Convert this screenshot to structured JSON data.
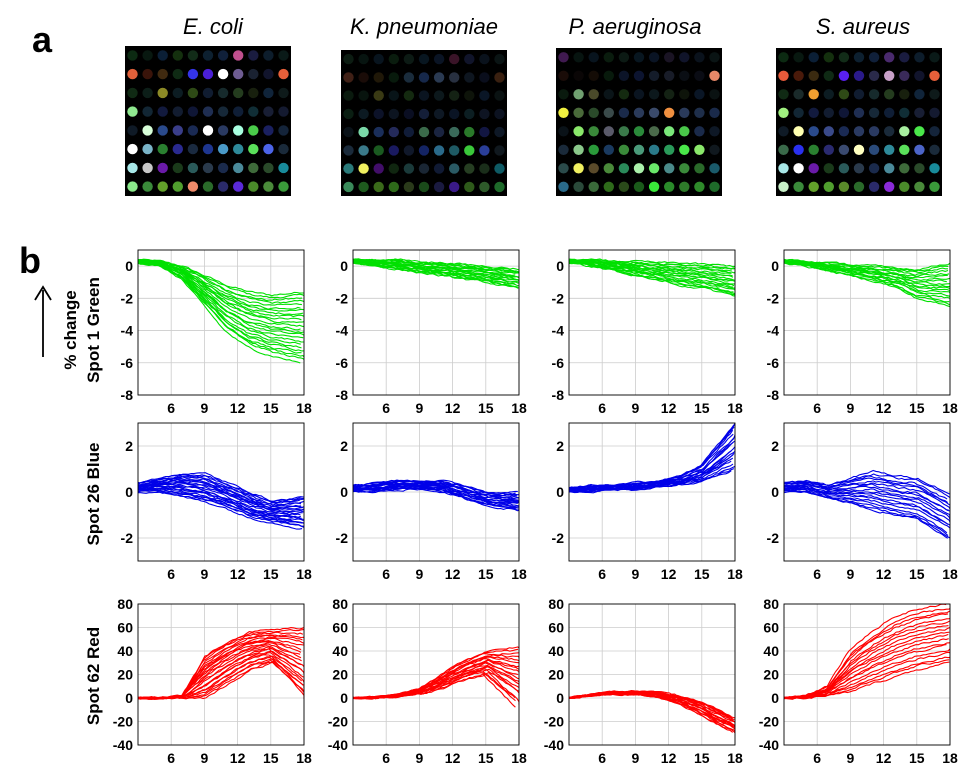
{
  "panel_labels": {
    "a": "a",
    "b": "b"
  },
  "row_labels": [
    "Spot 1 Green",
    "Spot 26 Blue",
    "Spot 62 Red"
  ],
  "y_annotation": "% change",
  "columns": [
    {
      "species": "E. coli",
      "array": [
        [
          "#0c2a12",
          "#081810",
          "#0b1f36",
          "#14300e",
          "#122c18",
          "#0d2030",
          "#10203a",
          "#c0508e",
          "#1a1c40",
          "#0d1d2c",
          "#0a1a18"
        ],
        [
          "#e0603a",
          "#3a140a",
          "#402a10",
          "#0f2a14",
          "#3434e8",
          "#4a1fd6",
          "#ffffff",
          "#6e5c92",
          "#1a2232",
          "#11142c",
          "#e8603a"
        ],
        [
          "#102a14",
          "#0c1e18",
          "#8c8a26",
          "#0c1c22",
          "#2e4a16",
          "#101c30",
          "#162a2c",
          "#243c1e",
          "#18200e",
          "#10243a",
          "#0e1a1a"
        ],
        [
          "#8fe88f",
          "#122634",
          "#121a3e",
          "#121c30",
          "#0f1636",
          "#1f2e52",
          "#162838",
          "#0f1e36",
          "#102e36",
          "#181e34",
          "#141a30"
        ],
        [
          "#0f1a26",
          "#d8ffd8",
          "#2a4a8c",
          "#3a3e8a",
          "#1a2a54",
          "#ffffff",
          "#2a3a62",
          "#a8ffe0",
          "#4acc4a",
          "#1a2060",
          "#14243a"
        ],
        [
          "#ffffff",
          "#7ab4c8",
          "#2a8030",
          "#2a2a90",
          "#1a2a40",
          "#1e3690",
          "#4a9ac8",
          "#2e8a9a",
          "#5ae05a",
          "#4c64e8",
          "#1a2a3a"
        ],
        [
          "#a8e8e8",
          "#c8c8c8",
          "#6a1aa8",
          "#1a3a1a",
          "#2a5a5a",
          "#2a3a4c",
          "#1a2a4c",
          "#4a8a9a",
          "#3e6a3a",
          "#2a4a2a",
          "#188a9a"
        ],
        [
          "#8ae88a",
          "#3a8a3a",
          "#62a02a",
          "#509e2e",
          "#f08a6a",
          "#2a6a2a",
          "#2a2a6a",
          "#5a2ad8",
          "#4a8a2a",
          "#4a8a3a",
          "#3a9a3a"
        ]
      ]
    },
    {
      "species": "K. pneumoniae",
      "array": [
        [
          "#0c1c12",
          "#071410",
          "#08141e",
          "#0a1c0e",
          "#0c1a14",
          "#081620",
          "#0a1424",
          "#3a1428",
          "#10142a",
          "#0a121c",
          "#0a1414"
        ],
        [
          "#402016",
          "#1a0c08",
          "#201808",
          "#081a0c",
          "#1a2c3c",
          "#16284a",
          "#2a3a52",
          "#283040",
          "#0e1620",
          "#0a0e1c",
          "#3a2010"
        ],
        [
          "#0a1a0e",
          "#08140e",
          "#3a3a14",
          "#081418",
          "#142a10",
          "#0a1420",
          "#0c181c",
          "#142214",
          "#0e140a",
          "#0a1626",
          "#0a1212"
        ],
        [
          "#0a1e12",
          "#0c1a22",
          "#0c1228",
          "#0c1420",
          "#0a0e22",
          "#141e38",
          "#0e1824",
          "#0a1424",
          "#0c1e22",
          "#0e1422",
          "#0c1220"
        ],
        [
          "#0a1218",
          "#7ad8a8",
          "#1a2e5a",
          "#242a5a",
          "#101c38",
          "#3a6a4a",
          "#1a2440",
          "#3a6a5a",
          "#2a7a2a",
          "#121642",
          "#0e1826"
        ],
        [
          "#1a2a3a",
          "#3a7a8a",
          "#1a5a20",
          "#1a1a60",
          "#10182a",
          "#142464",
          "#2a6a8a",
          "#1e5a64",
          "#3ac83a",
          "#2a3e98",
          "#10181e"
        ],
        [
          "#2a7a7a",
          "#f0f060",
          "#420e6a",
          "#102610",
          "#1a3a3a",
          "#1a2634",
          "#101a34",
          "#2a5a64",
          "#263e22",
          "#1a2e1a",
          "#0e5a64"
        ],
        [
          "#3a8a5a",
          "#1e5a1e",
          "#3a6a1a",
          "#2e6a1a",
          "#2a3a1a",
          "#1a4a1a",
          "#1a1a40",
          "#3a1a88",
          "#2e5a1a",
          "#2e5a2a",
          "#1e6a2a"
        ]
      ]
    },
    {
      "species": "P. aeruginosa",
      "array": [
        [
          "#401a50",
          "#071410",
          "#08141e",
          "#0a1c0e",
          "#0c1a14",
          "#081620",
          "#0a1424",
          "#1a1424",
          "#10142a",
          "#0a121c",
          "#0a1414"
        ],
        [
          "#1a0c08",
          "#0a0606",
          "#140c06",
          "#081a0c",
          "#0c1428",
          "#0c1430",
          "#141c2a",
          "#181c28",
          "#0a0e14",
          "#0a0c14",
          "#e88868"
        ],
        [
          "#0a1a0e",
          "#70a070",
          "#4a4a2a",
          "#0a1418",
          "#142a10",
          "#0a1420",
          "#0c181c",
          "#142214",
          "#0e140a",
          "#0a1626",
          "#0a1212"
        ],
        [
          "#f0f040",
          "#4a6a3a",
          "#2a4a2a",
          "#3a4a4a",
          "#1a2a4a",
          "#2a3a5a",
          "#3a4a6a",
          "#f09040",
          "#2a3a5a",
          "#1e2e4a",
          "#1a2a4a"
        ],
        [
          "#0a1218",
          "#8ae86a",
          "#3a8a3a",
          "#5a5a6a",
          "#3a7a4a",
          "#2a8a3a",
          "#4a6a4a",
          "#7ae87a",
          "#4ac84a",
          "#1a2a4a",
          "#0e1826"
        ],
        [
          "#1a2a3a",
          "#8ac88a",
          "#2a9a3a",
          "#1a3a60",
          "#3a8a3a",
          "#4a9a7a",
          "#2a7a8a",
          "#2a9a5a",
          "#4ae84a",
          "#8ae86a",
          "#10181e"
        ],
        [
          "#2a4a4a",
          "#f0f060",
          "#5a4a2a",
          "#4a8a3a",
          "#2a8a5a",
          "#aaf0aa",
          "#6ae86a",
          "#4a8a8a",
          "#3a8a3a",
          "#2a6a2a",
          "#1a5a6a"
        ],
        [
          "#2a6a8a",
          "#2a4a3a",
          "#3a6a3a",
          "#2e6a1a",
          "#2a4a1a",
          "#1a5a1a",
          "#3ae83a",
          "#2a8a2a",
          "#2e7a2a",
          "#2e8a2a",
          "#1e6a2a"
        ]
      ]
    },
    {
      "species": "S. aureus",
      "array": [
        [
          "#0c2a12",
          "#081810",
          "#0b1f36",
          "#14300e",
          "#122c18",
          "#0d2030",
          "#10203a",
          "#4a2a6e",
          "#1a1c40",
          "#0d1d2c",
          "#0a1a18"
        ],
        [
          "#e85a3a",
          "#4a1a0a",
          "#3a2a10",
          "#0f2a14",
          "#5a20f0",
          "#2a1a8a",
          "#2a2a4a",
          "#c8a0c8",
          "#3a2a5a",
          "#11142c",
          "#e8603a"
        ],
        [
          "#102a14",
          "#1a2a2a",
          "#f0a030",
          "#0c1c22",
          "#2e4a16",
          "#101c30",
          "#162a2c",
          "#243c1e",
          "#18200e",
          "#10243a",
          "#0e1a1a"
        ],
        [
          "#a0f080",
          "#122634",
          "#121a3e",
          "#121c30",
          "#0f1636",
          "#1f2e52",
          "#162838",
          "#0f1e36",
          "#102e36",
          "#181e34",
          "#141a30"
        ],
        [
          "#0f1a26",
          "#ffffb0",
          "#2a4a8c",
          "#3a4a8a",
          "#1a2a54",
          "#2a3a62",
          "#2a3a62",
          "#1a2a3a",
          "#a8f0a0",
          "#4ae84a",
          "#14243a"
        ],
        [
          "#3a6a4a",
          "#2a30f0",
          "#2a8030",
          "#2a2a70",
          "#3a4a70",
          "#ffffc0",
          "#2a4a7a",
          "#2e8a9a",
          "#5ae05a",
          "#4c64c8",
          "#1a2a3a"
        ],
        [
          "#a8e8e8",
          "#ffffff",
          "#6a1aa8",
          "#1a3a1a",
          "#2a5a5a",
          "#2a3a4c",
          "#1a2a4c",
          "#4a8a9a",
          "#3e6a3a",
          "#2a4a2a",
          "#188a9a"
        ],
        [
          "#c8f0c8",
          "#3a8a3a",
          "#62a02a",
          "#509e2e",
          "#5a8a2a",
          "#2a6a2a",
          "#2a2a6a",
          "#8a2ad8",
          "#4a8a2a",
          "#4a8a3a",
          "#3a9a3a"
        ]
      ]
    }
  ],
  "chart_data": [
    {
      "type": "line",
      "row": "Spot 1 Green",
      "color": "#00e000",
      "xlim": [
        3,
        18
      ],
      "ylim": [
        -8,
        1
      ],
      "xticks": [
        6,
        9,
        12,
        15,
        18
      ],
      "yticks": [
        0,
        -2,
        -4,
        -6,
        -8
      ],
      "grid": true,
      "panels": [
        {
          "species": "E. coli",
          "x": [
            3,
            5,
            7,
            9,
            11,
            13,
            15,
            18
          ],
          "envelope_top": [
            0.4,
            0.3,
            0.0,
            -0.6,
            -1.2,
            -1.6,
            -1.8,
            -1.6
          ],
          "envelope_bottom": [
            0.2,
            0.0,
            -0.8,
            -2.4,
            -4.0,
            -5.0,
            -5.5,
            -6.0
          ],
          "n_traces": 24
        },
        {
          "species": "K. pneumoniae",
          "x": [
            3,
            5,
            7,
            9,
            11,
            13,
            15,
            18
          ],
          "envelope_top": [
            0.4,
            0.4,
            0.4,
            0.3,
            0.2,
            0.1,
            0.0,
            -0.2
          ],
          "envelope_bottom": [
            0.2,
            0.0,
            -0.2,
            -0.4,
            -0.6,
            -0.8,
            -1.0,
            -1.4
          ],
          "n_traces": 20
        },
        {
          "species": "P. aeruginosa",
          "x": [
            3,
            5,
            7,
            9,
            11,
            13,
            15,
            18
          ],
          "envelope_top": [
            0.4,
            0.4,
            0.3,
            0.3,
            0.2,
            0.2,
            0.1,
            0.0
          ],
          "envelope_bottom": [
            0.2,
            0.0,
            -0.3,
            -0.6,
            -0.9,
            -1.2,
            -1.4,
            -1.9
          ],
          "n_traces": 20
        },
        {
          "species": "S. aureus",
          "x": [
            3,
            5,
            7,
            9,
            11,
            13,
            15,
            18
          ],
          "envelope_top": [
            0.4,
            0.3,
            0.2,
            0.1,
            0.0,
            -0.1,
            -0.2,
            0.2
          ],
          "envelope_bottom": [
            0.2,
            0.0,
            -0.3,
            -0.6,
            -0.9,
            -1.3,
            -2.0,
            -2.5
          ],
          "n_traces": 18
        }
      ]
    },
    {
      "type": "line",
      "row": "Spot 26 Blue",
      "color": "#0000e8",
      "xlim": [
        3,
        18
      ],
      "ylim": [
        -3,
        3
      ],
      "xticks": [
        6,
        9,
        12,
        15,
        18
      ],
      "yticks": [
        2,
        0,
        -2
      ],
      "grid": true,
      "panels": [
        {
          "species": "E. coli",
          "x": [
            3,
            5,
            7,
            9,
            11,
            13,
            15,
            18
          ],
          "envelope_top": [
            0.4,
            0.6,
            0.8,
            0.8,
            0.4,
            0.0,
            -0.4,
            -0.2
          ],
          "envelope_bottom": [
            0.0,
            0.0,
            -0.2,
            -0.4,
            -0.7,
            -1.1,
            -1.3,
            -1.6
          ],
          "n_traces": 24
        },
        {
          "species": "K. pneumoniae",
          "x": [
            3,
            5,
            7,
            9,
            11,
            13,
            15,
            18
          ],
          "envelope_top": [
            0.3,
            0.4,
            0.5,
            0.5,
            0.5,
            0.3,
            0.0,
            0.0
          ],
          "envelope_bottom": [
            0.0,
            0.0,
            0.1,
            0.1,
            0.0,
            -0.3,
            -0.6,
            -0.8
          ],
          "n_traces": 20
        },
        {
          "species": "P. aeruginosa",
          "x": [
            3,
            5,
            7,
            9,
            11,
            13,
            15,
            18
          ],
          "envelope_top": [
            0.2,
            0.3,
            0.3,
            0.4,
            0.5,
            0.7,
            1.2,
            3.0
          ],
          "envelope_bottom": [
            0.0,
            0.0,
            0.1,
            0.1,
            0.2,
            0.3,
            0.4,
            0.9
          ],
          "n_traces": 20
        },
        {
          "species": "S. aureus",
          "x": [
            3,
            5,
            7,
            9,
            11,
            13,
            15,
            18
          ],
          "envelope_top": [
            0.4,
            0.5,
            0.3,
            0.6,
            0.9,
            0.7,
            0.6,
            -0.1
          ],
          "envelope_bottom": [
            0.0,
            0.0,
            -0.3,
            -0.5,
            -0.8,
            -1.0,
            -1.2,
            -2.1
          ],
          "n_traces": 18
        }
      ]
    },
    {
      "type": "line",
      "row": "Spot 62 Red",
      "color": "#ff0000",
      "xlim": [
        3,
        18
      ],
      "ylim": [
        -40,
        80
      ],
      "xticks": [
        6,
        9,
        12,
        15,
        18
      ],
      "yticks": [
        80,
        60,
        40,
        20,
        0,
        -20,
        -40
      ],
      "grid": true,
      "panels": [
        {
          "species": "E. coli",
          "x": [
            3,
            5,
            7,
            9,
            11,
            13,
            15,
            18
          ],
          "envelope_top": [
            0,
            0,
            2,
            35,
            48,
            56,
            58,
            60
          ],
          "envelope_bottom": [
            0,
            0,
            0,
            0,
            12,
            24,
            30,
            0
          ],
          "n_traces": 24
        },
        {
          "species": "K. pneumoniae",
          "x": [
            3,
            5,
            7,
            9,
            11,
            13,
            15,
            18
          ],
          "envelope_top": [
            0,
            1,
            3,
            8,
            20,
            32,
            40,
            43
          ],
          "envelope_bottom": [
            0,
            0,
            1,
            3,
            8,
            15,
            20,
            -8
          ],
          "n_traces": 20
        },
        {
          "species": "P. aeruginosa",
          "x": [
            3,
            5,
            7,
            9,
            11,
            13,
            15,
            18
          ],
          "envelope_top": [
            0,
            3,
            5,
            6,
            5,
            2,
            -3,
            -16
          ],
          "envelope_bottom": [
            0,
            2,
            3,
            3,
            1,
            -5,
            -15,
            -30
          ],
          "n_traces": 20
        },
        {
          "species": "S. aureus",
          "x": [
            3,
            5,
            7,
            9,
            11,
            13,
            15,
            18
          ],
          "envelope_top": [
            0,
            2,
            10,
            40,
            56,
            68,
            75,
            80
          ],
          "envelope_bottom": [
            0,
            0,
            2,
            5,
            12,
            18,
            24,
            30
          ],
          "n_traces": 18
        }
      ]
    }
  ]
}
